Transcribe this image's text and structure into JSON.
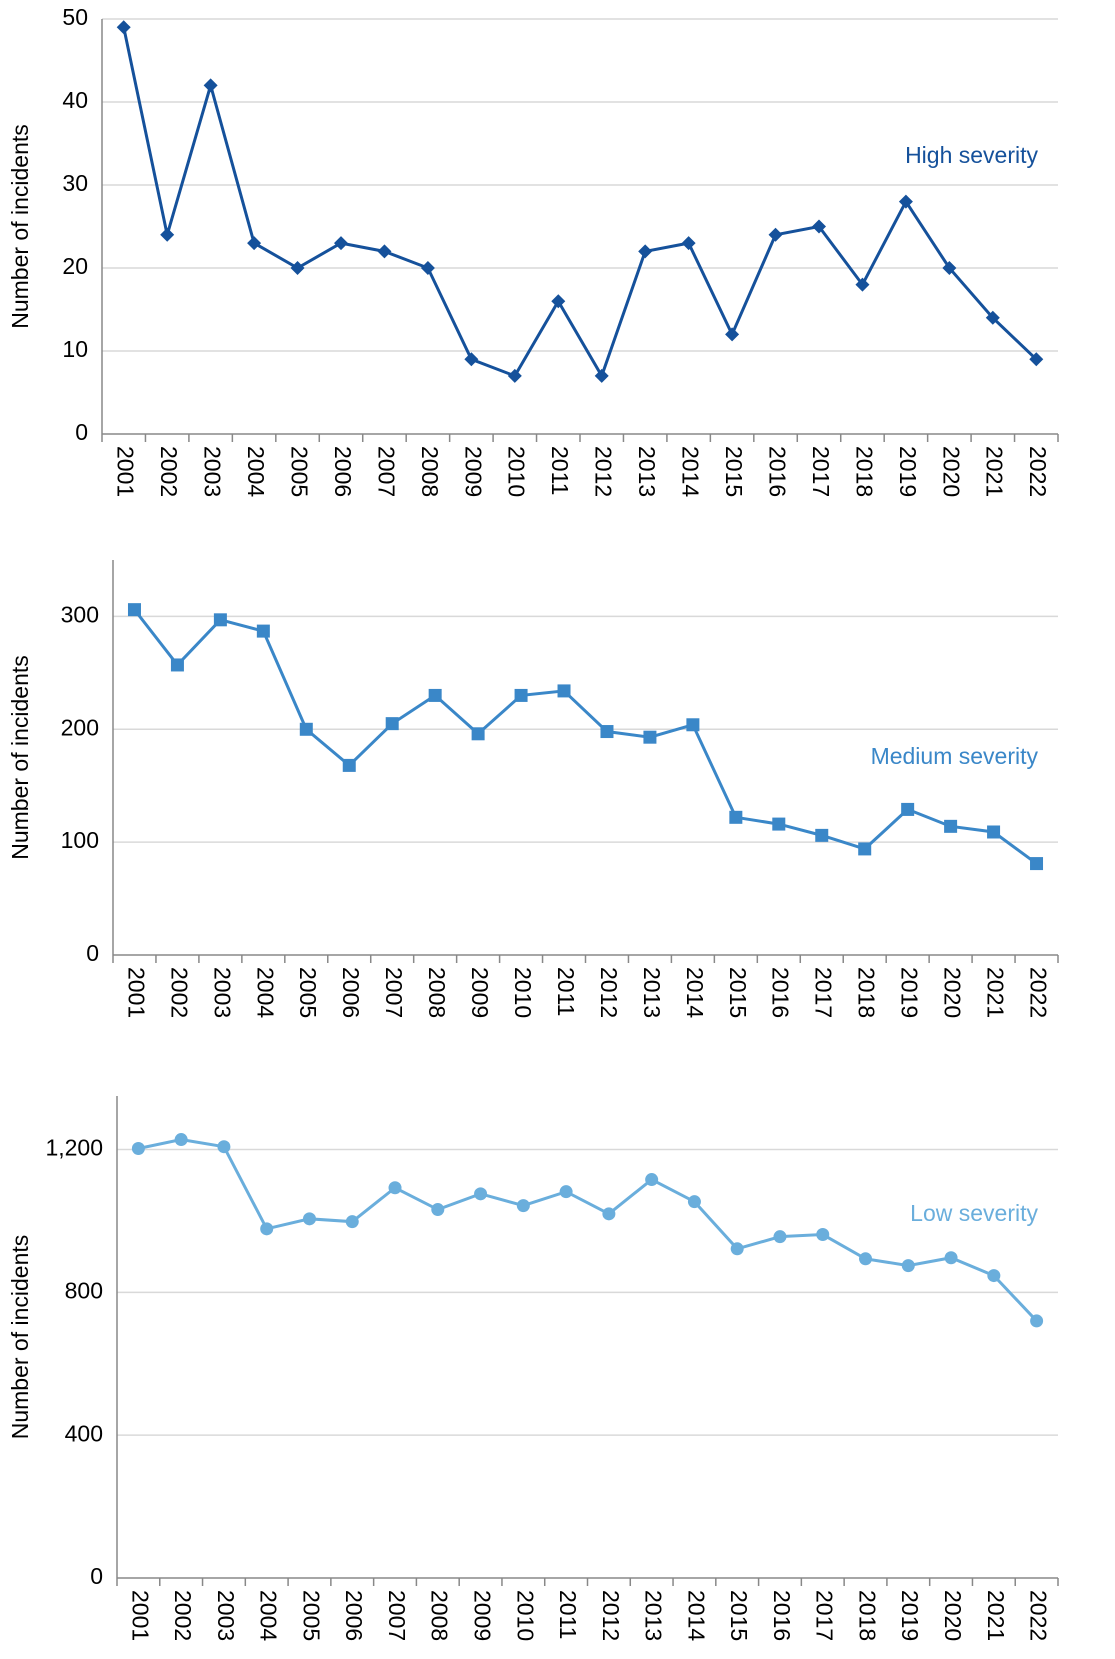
{
  "chart_data": [
    {
      "type": "line",
      "y_label": "Number of incidents",
      "categories": [
        "2001",
        "2002",
        "2003",
        "2004",
        "2005",
        "2006",
        "2007",
        "2008",
        "2009",
        "2010",
        "2011",
        "2012",
        "2013",
        "2014",
        "2015",
        "2016",
        "2017",
        "2018",
        "2019",
        "2020",
        "2021",
        "2022"
      ],
      "series": [
        {
          "name": "High severity",
          "color": "#15519b",
          "marker": "diamond",
          "values": [
            49,
            24,
            42,
            23,
            20,
            23,
            22,
            20,
            9,
            7,
            16,
            7,
            22,
            23,
            12,
            24,
            25,
            18,
            28,
            20,
            14,
            9
          ]
        }
      ],
      "ylim": [
        0,
        50
      ],
      "yticks": [
        0,
        10,
        20,
        30,
        40,
        50
      ],
      "grid": true
    },
    {
      "type": "line",
      "y_label": "Number of incidents",
      "categories": [
        "2001",
        "2002",
        "2003",
        "2004",
        "2005",
        "2006",
        "2007",
        "2008",
        "2009",
        "2010",
        "2011",
        "2012",
        "2013",
        "2014",
        "2015",
        "2016",
        "2017",
        "2018",
        "2019",
        "2020",
        "2021",
        "2022"
      ],
      "series": [
        {
          "name": "Medium severity",
          "color": "#3a87c8",
          "marker": "square",
          "values": [
            306,
            257,
            297,
            287,
            200,
            168,
            205,
            230,
            196,
            230,
            234,
            198,
            193,
            204,
            122,
            116,
            106,
            94,
            129,
            114,
            109,
            81
          ]
        }
      ],
      "ylim": [
        0,
        350
      ],
      "yticks": [
        0,
        100,
        200,
        300
      ],
      "grid": true
    },
    {
      "type": "line",
      "y_label": "Number of incidents",
      "categories": [
        "2001",
        "2002",
        "2003",
        "2004",
        "2005",
        "2006",
        "2007",
        "2008",
        "2009",
        "2010",
        "2011",
        "2012",
        "2013",
        "2014",
        "2015",
        "2016",
        "2017",
        "2018",
        "2019",
        "2020",
        "2021",
        "2022"
      ],
      "series": [
        {
          "name": "Low severity",
          "color": "#6aaedc",
          "marker": "circle",
          "values": [
            1203,
            1228,
            1208,
            978,
            1006,
            998,
            1093,
            1032,
            1076,
            1043,
            1082,
            1020,
            1116,
            1054,
            922,
            956,
            962,
            894,
            875,
            897,
            847,
            720
          ]
        }
      ],
      "ylim": [
        0,
        1350
      ],
      "yticks": [
        0,
        400,
        800,
        {
          "value": 1200,
          "label": "1,200"
        }
      ],
      "grid": true
    }
  ]
}
